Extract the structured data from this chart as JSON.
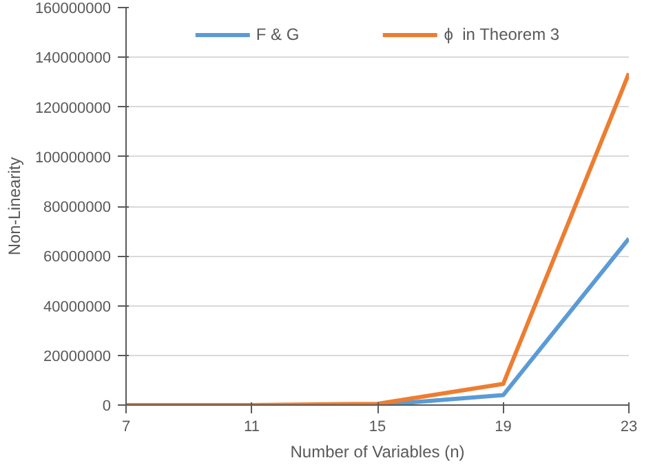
{
  "chart_data": {
    "type": "line",
    "xlabel": "Number of Variables (n)",
    "ylabel": "Non-Linearity",
    "x": [
      7,
      11,
      15,
      19,
      23
    ],
    "series": [
      {
        "name": "F & G",
        "color": "#5b9bd5",
        "values": [
          0,
          0,
          0,
          4000000,
          67000000
        ]
      },
      {
        "name": "ϕ  in Theorem 3",
        "color": "#ed7d31",
        "values": [
          0,
          0,
          500000,
          8500000,
          133500000
        ]
      }
    ],
    "xlim": [
      7,
      23
    ],
    "xticks": [
      7,
      11,
      15,
      19,
      23
    ],
    "ylim": [
      0,
      160000000
    ],
    "yticks": [
      0,
      20000000,
      40000000,
      60000000,
      80000000,
      100000000,
      120000000,
      140000000,
      160000000
    ],
    "grid": "y",
    "legend": "top",
    "marker": "none",
    "line_style": "solid"
  }
}
